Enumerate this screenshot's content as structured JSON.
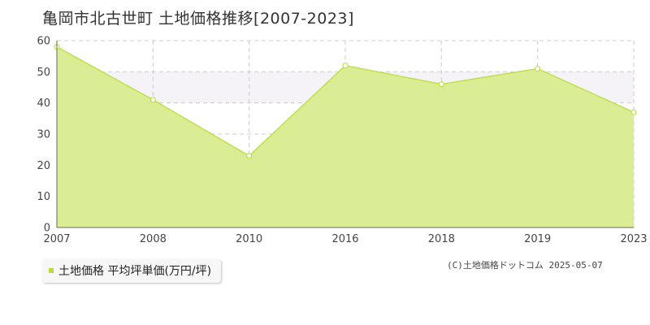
{
  "colors": {
    "fill": "#dbed94",
    "line": "#bfe04a",
    "point_fill": "#ffffff",
    "grid": "#cccccc",
    "band": "#f5f3f8",
    "legend_swatch": "#b7dc3c"
  },
  "chart_data": {
    "type": "area",
    "title": "亀岡市北古世町 土地価格推移[2007-2023]",
    "x": [
      "2007",
      "2008",
      "2010",
      "2016",
      "2018",
      "2019",
      "2023"
    ],
    "series": [
      {
        "name": "土地価格 平均坪単価(万円/坪)",
        "values": [
          58,
          41,
          23,
          52,
          46,
          51,
          37
        ]
      }
    ],
    "yticks": [
      "0",
      "10",
      "20",
      "30",
      "40",
      "50",
      "60"
    ],
    "ylim": [
      0,
      60
    ],
    "grid": true,
    "legend_position": "bottom-left"
  },
  "copyright": "(C)土地価格ドットコム 2025-05-07"
}
